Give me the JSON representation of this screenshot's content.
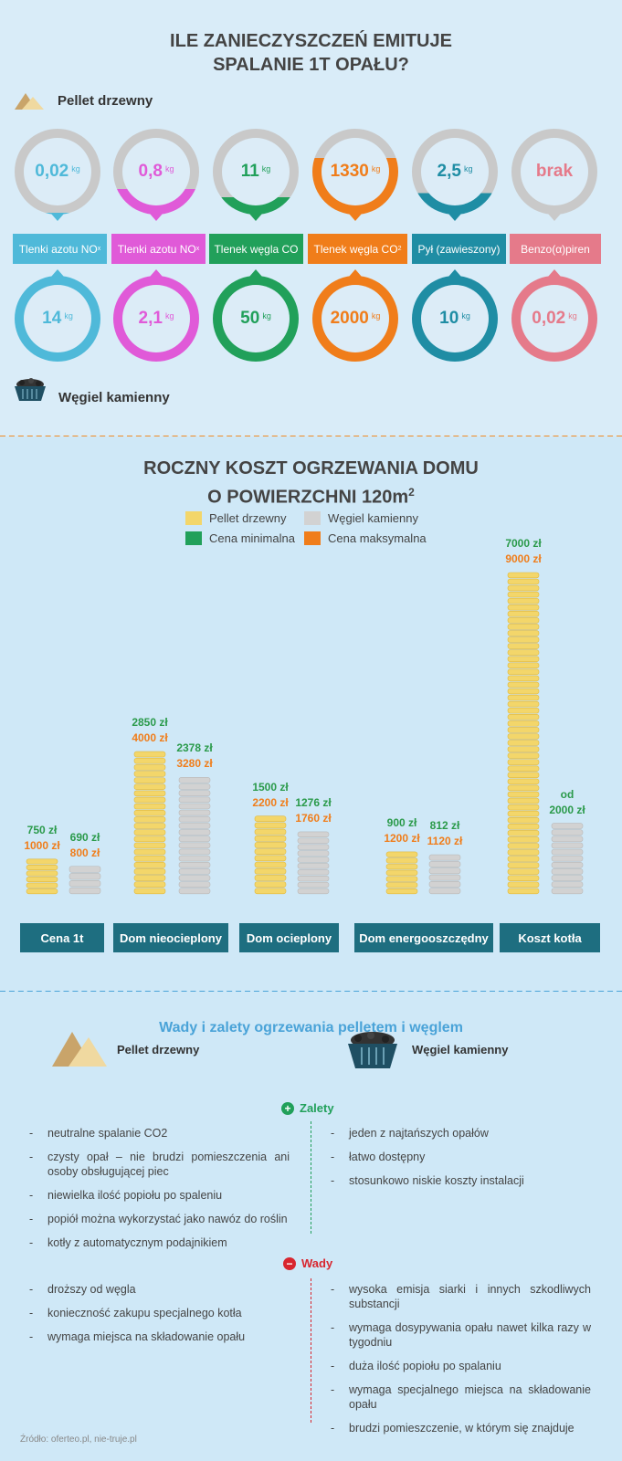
{
  "section1": {
    "title_line1": "ILE ZANIECZYSZCZEŃ EMITUJE",
    "title_line2": "SPALANIE 1T OPAŁU?",
    "pellet_label": "Pellet drzewny",
    "coal_label": "Węgiel kamienny",
    "unit": "kg",
    "pollutants": [
      {
        "label": "Tlenki azotu NO",
        "sub": "x",
        "color": "#4fb9d9",
        "pellet": "0,02",
        "pellet_fill": 0.02,
        "coal": "14"
      },
      {
        "label": "Tlenki azotu NO",
        "sub": "x",
        "color": "#e05ad8",
        "pellet": "0,8",
        "pellet_fill": 0.3,
        "coal": "2,1"
      },
      {
        "label": "Tlenek węgla CO",
        "sub": "",
        "color": "#21a05a",
        "pellet": "11",
        "pellet_fill": 0.2,
        "coal": "50"
      },
      {
        "label": "Tlenek węgla CO",
        "sub": "2",
        "color": "#f07d1a",
        "pellet": "1330",
        "pellet_fill": 0.66,
        "coal": "2000"
      },
      {
        "label": "Pył (zawieszony)",
        "sub": "",
        "color": "#1f8da4",
        "pellet": "2,5",
        "pellet_fill": 0.25,
        "coal": "10"
      },
      {
        "label": "Benzo(α)piren",
        "sub": "",
        "color": "#e57a8a",
        "pellet": "brak",
        "pellet_fill": 0,
        "coal": "0,02"
      }
    ]
  },
  "section2": {
    "title_line1": "ROCZNY KOSZT OGRZEWANIA DOMU",
    "title_line2": "O POWIERZCHNI 120m",
    "title_sup": "2",
    "legend": [
      {
        "label": "Pellet drzewny",
        "color": "#f3d66a"
      },
      {
        "label": "Węgiel kamienny",
        "color": "#d2d2d2"
      },
      {
        "label": "Cena minimalna",
        "color": "#21a05a"
      },
      {
        "label": "Cena maksymalna",
        "color": "#f07d1a"
      }
    ]
  },
  "chart_data": {
    "type": "bar",
    "title": "ROCZNY KOSZT OGRZEWANIA DOMU O POWIERZCHNI 120m2",
    "categories": [
      "Cena 1t",
      "Dom nieocieplony",
      "Dom ocieplony",
      "Dom energooszczędny",
      "Koszt kotła"
    ],
    "series": [
      {
        "name": "Pellet drzewny",
        "min": [
          750,
          2850,
          1500,
          900,
          7000
        ],
        "max": [
          1000,
          4000,
          2200,
          1200,
          9000
        ],
        "min_labels": [
          "750 zł",
          "2850 zł",
          "1500 zł",
          "900 zł",
          "7000 zł"
        ],
        "max_labels": [
          "1000 zł",
          "4000 zł",
          "2200 zł",
          "1200 zł",
          "9000 zł"
        ]
      },
      {
        "name": "Węgiel kamienny",
        "min": [
          690,
          2378,
          1276,
          812,
          2000
        ],
        "max": [
          800,
          3280,
          1760,
          1120,
          null
        ],
        "min_labels": [
          "690 zł",
          "2378 zł",
          "1276 zł",
          "812 zł",
          "od"
        ],
        "max_labels": [
          "800 zł",
          "3280 zł",
          "1760 zł",
          "1120 zł",
          "2000 zł"
        ]
      }
    ]
  },
  "section3": {
    "title": "Wady i zalety ogrzewania pelletem i węglem",
    "pellet_label": "Pellet drzewny",
    "coal_label": "Węgiel kamienny",
    "pros_label": "Zalety",
    "cons_label": "Wady",
    "pellet_pros": [
      "neutralne spalanie CO2",
      "czysty opał – nie brudzi pomieszczenia ani osoby obsługującej piec",
      "niewielka ilość popiołu po spaleniu",
      "popiół można wykorzystać jako nawóz do roślin",
      "kotły z automatycznym podajnikiem"
    ],
    "coal_pros": [
      "jeden z najtańszych opałów",
      "łatwo dostępny",
      "stosunkowo niskie koszty instalacji"
    ],
    "pellet_cons": [
      "droższy od węgla",
      "konieczność zakupu specjalnego kotła",
      "wymaga miejsca na składowanie opału"
    ],
    "coal_cons": [
      "wysoka emisja siarki i innych szkodliwych substancji",
      "wymaga dosypywania opału nawet kilka razy w tygodniu",
      "duża ilość popiołu po spalaniu",
      "wymaga specjalnego miejsca na składowanie opału",
      "brudzi pomieszczenie, w którym się znajduje"
    ],
    "source": "Źródło: oferteo.pl, nie-truje.pl"
  }
}
